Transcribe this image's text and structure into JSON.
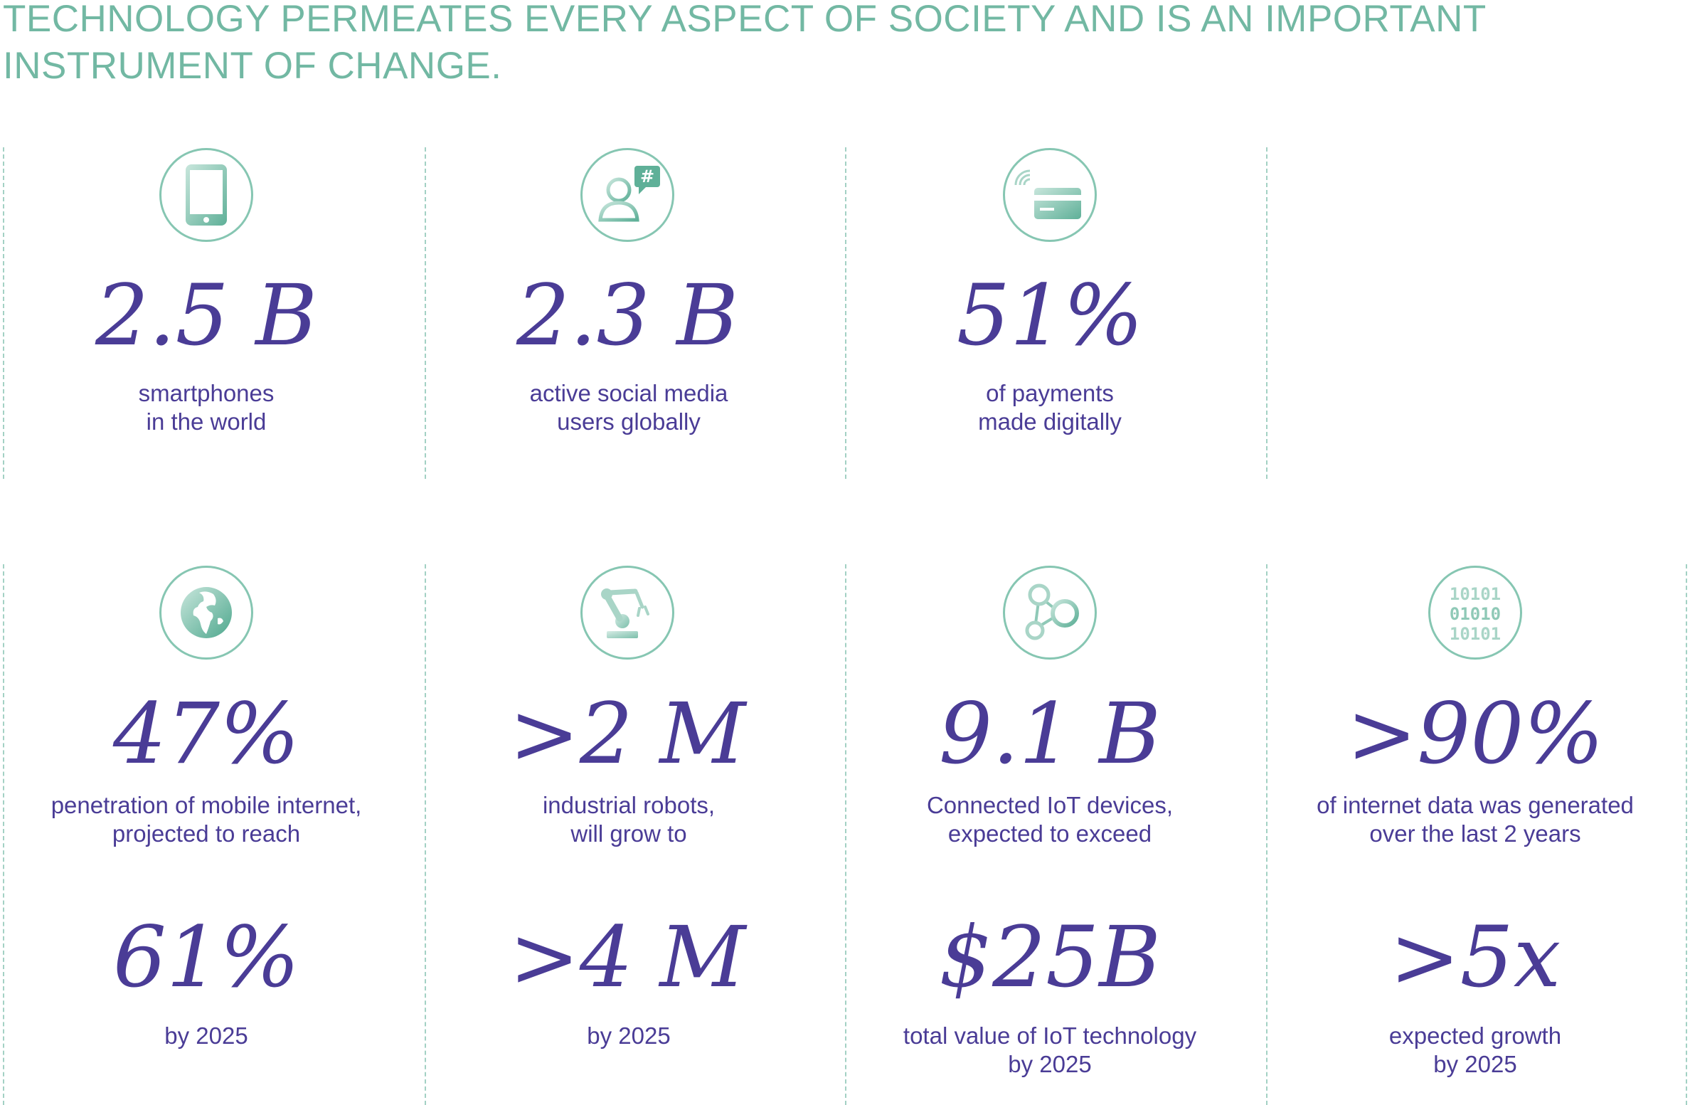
{
  "headline": {
    "line1": "TECHNOLOGY PERMEATES EVERY ASPECT OF SOCIETY AND IS AN IMPORTANT",
    "line2": "INSTRUMENT OF CHANGE."
  },
  "colors": {
    "accent_green": "#72b8a3",
    "stat_purple": "#4a3c96",
    "divider": "#a3d1c4"
  },
  "row1": [
    {
      "icon": "tablet-icon",
      "value": "2.5 B",
      "label_line1": "smartphones",
      "label_line2": "in the world"
    },
    {
      "icon": "social-media-user-icon",
      "value": "2.3 B",
      "label_line1": "active social media",
      "label_line2": "users globally"
    },
    {
      "icon": "contactless-card-icon",
      "value": "51%",
      "label_line1": "of payments",
      "label_line2": "made digitally"
    }
  ],
  "row2": [
    {
      "icon": "globe-icon",
      "value": "47%",
      "label_line1": "penetration of mobile internet,",
      "label_line2": "projected to reach",
      "value2": "61%",
      "label2_line1": "by 2025",
      "label2_line2": ""
    },
    {
      "icon": "robot-arm-icon",
      "value": ">2 M",
      "label_line1": "industrial robots,",
      "label_line2": "will grow to",
      "value2": ">4 M",
      "label2_line1": "by 2025",
      "label2_line2": ""
    },
    {
      "icon": "network-nodes-icon",
      "value": "9.1 B",
      "label_line1": "Connected IoT devices,",
      "label_line2": "expected to exceed",
      "value2": "$25B",
      "label2_line1": "total value of IoT technology",
      "label2_line2": "by 2025"
    },
    {
      "icon": "binary-data-icon",
      "binary_lines": [
        "10101",
        "01010",
        "10101"
      ],
      "value": ">90%",
      "label_line1": "of internet data was generated",
      "label_line2": "over the last 2 years",
      "value2": ">5x",
      "label2_line1": "expected growth",
      "label2_line2": "by 2025"
    }
  ]
}
